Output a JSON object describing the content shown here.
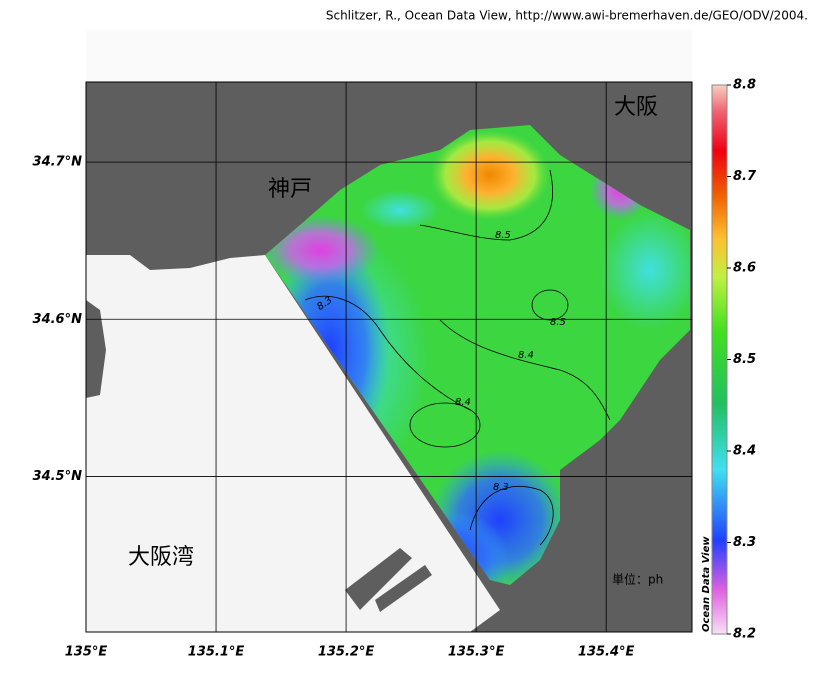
{
  "credit": "Schlitzer, R., Ocean Data View, http://www.awi-bremerhaven.de/GEO/ODV/2004.",
  "chart_data": {
    "type": "map",
    "xlim": [
      135,
      135.466
    ],
    "ylim": [
      34.401,
      34.751
    ],
    "xticks": [
      {
        "value": 135,
        "label": "135°E"
      },
      {
        "value": 135.1,
        "label": "135.1°E"
      },
      {
        "value": 135.2,
        "label": "135.2°E"
      },
      {
        "value": 135.3,
        "label": "135.3°E"
      },
      {
        "value": 135.4,
        "label": "135.4°E"
      }
    ],
    "yticks": [
      {
        "value": 34.5,
        "label": "34.5°N"
      },
      {
        "value": 34.6,
        "label": "34.6°N"
      },
      {
        "value": 34.7,
        "label": "34.7°N"
      }
    ],
    "grid": true,
    "place_labels": [
      "大阪",
      "神戸",
      "大阪湾"
    ],
    "unit_label": "単位：ph",
    "contour_labels": [
      8.5,
      8.3,
      8.5,
      8.4,
      8.4,
      8.3
    ],
    "colorbar": {
      "title": "Ocean Data View",
      "range": [
        8.2,
        8.8
      ],
      "ticks": [
        8.2,
        8.3,
        8.4,
        8.5,
        8.6,
        8.7,
        8.8
      ]
    }
  }
}
